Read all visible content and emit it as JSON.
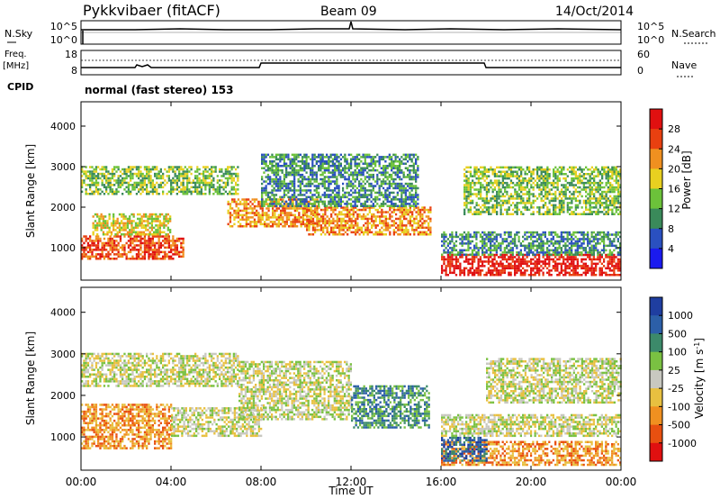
{
  "header": {
    "station": "Pykkvibaer (fitACF)",
    "beam": "Beam 09",
    "date": "14/Oct/2014"
  },
  "status_panels": {
    "nsky_label": "N.Sky",
    "nsearch_label": "N.Search",
    "nsky_ticks": [
      "10^5",
      "10^0"
    ],
    "nsearch_ticks": [
      "10^5",
      "10^0"
    ],
    "freq_label": "Freq.",
    "freq_unit": "[MHz]",
    "freq_ticks": [
      "18",
      "8"
    ],
    "nave_label": "Nave",
    "nave_ticks": [
      "60",
      "0"
    ],
    "cpid_label": "CPID",
    "cpid_text": "normal (fast stereo) 153"
  },
  "chart_data": [
    {
      "type": "heatmap",
      "name": "power",
      "ylabel": "Slant Range [km]",
      "yticks": [
        1000,
        2000,
        3000,
        4000
      ],
      "ylim": [
        200,
        4600
      ],
      "xlim": [
        0,
        24
      ],
      "colorbar_label": "Power [dB]",
      "colorbar_ticks": [
        "4",
        "8",
        "12",
        "16",
        "20",
        "24",
        "28"
      ],
      "colors": [
        "#1a1aee",
        "#2a50c0",
        "#3a8a5a",
        "#6cc23a",
        "#e8d020",
        "#f09020",
        "#e84010",
        "#e01010"
      ],
      "echo_bands": [
        {
          "t0": 0.0,
          "t1": 4.5,
          "r0": 700,
          "r1": 1300,
          "level": 6
        },
        {
          "t0": 0.5,
          "t1": 4.0,
          "r0": 1300,
          "r1": 1800,
          "level": 4
        },
        {
          "t0": 0.0,
          "t1": 7.0,
          "r0": 2300,
          "r1": 3000,
          "level": 3
        },
        {
          "t0": 6.5,
          "t1": 10.5,
          "r0": 1500,
          "r1": 2200,
          "level": 5
        },
        {
          "t0": 10.0,
          "t1": 15.5,
          "r0": 1300,
          "r1": 2000,
          "level": 5
        },
        {
          "t0": 8.0,
          "t1": 15.0,
          "r0": 2000,
          "r1": 3300,
          "level": 2
        },
        {
          "t0": 16.0,
          "t1": 24.0,
          "r0": 300,
          "r1": 800,
          "level": 7
        },
        {
          "t0": 16.0,
          "t1": 24.0,
          "r0": 800,
          "r1": 1400,
          "level": 2
        },
        {
          "t0": 17.0,
          "t1": 24.0,
          "r0": 1800,
          "r1": 3000,
          "level": 3
        }
      ]
    },
    {
      "type": "heatmap",
      "name": "velocity",
      "ylabel": "Slant Range [km]",
      "yticks": [
        1000,
        2000,
        3000,
        4000
      ],
      "ylim": [
        200,
        4600
      ],
      "xlim": [
        0,
        24
      ],
      "xticks": [
        "00:00",
        "04:00",
        "08:00",
        "12:00",
        "16:00",
        "20:00",
        "00:00"
      ],
      "xlabel": "Time UT",
      "colorbar_label": "Velocity [m s^-1]",
      "colorbar_ticks": [
        "1000",
        "500",
        "100",
        "25",
        "-25",
        "-100",
        "-500",
        "-1000"
      ],
      "colors": [
        "#1f3ea0",
        "#2c5fa8",
        "#3c8a6a",
        "#7ac142",
        "#c8c8c0",
        "#e8c040",
        "#f09020",
        "#e85010",
        "#e01010"
      ],
      "echo_bands": [
        {
          "t0": 0.0,
          "t1": 7.0,
          "r0": 2200,
          "r1": 3000,
          "level": 4
        },
        {
          "t0": 0.0,
          "t1": 4.0,
          "r0": 700,
          "r1": 1800,
          "level": 6
        },
        {
          "t0": 4.0,
          "t1": 8.0,
          "r0": 1000,
          "r1": 1700,
          "level": 4
        },
        {
          "t0": 7.0,
          "t1": 12.0,
          "r0": 1400,
          "r1": 2800,
          "level": 4
        },
        {
          "t0": 12.0,
          "t1": 15.5,
          "r0": 1200,
          "r1": 2200,
          "level": 2
        },
        {
          "t0": 16.0,
          "t1": 24.0,
          "r0": 300,
          "r1": 900,
          "level": 6
        },
        {
          "t0": 16.0,
          "t1": 18.0,
          "r0": 400,
          "r1": 1000,
          "level": 1
        },
        {
          "t0": 16.0,
          "t1": 24.0,
          "r0": 1000,
          "r1": 1500,
          "level": 4
        },
        {
          "t0": 18.0,
          "t1": 24.0,
          "r0": 1800,
          "r1": 2900,
          "level": 4
        }
      ]
    }
  ]
}
